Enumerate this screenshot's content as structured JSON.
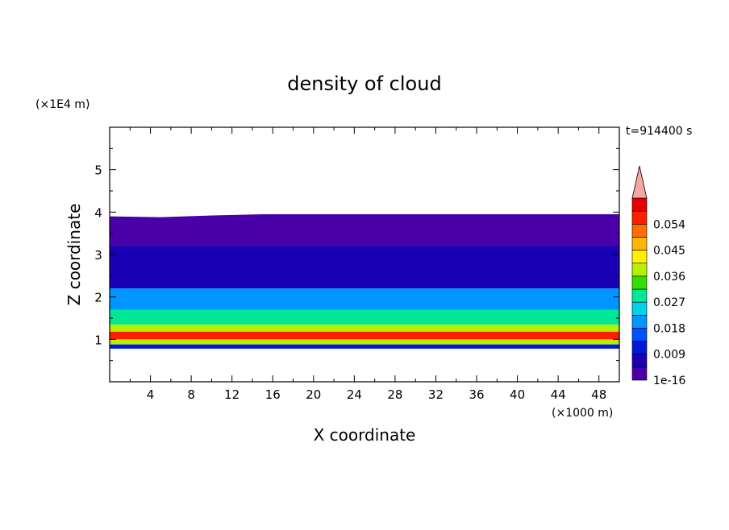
{
  "chart_data": {
    "type": "heatmap",
    "title": "density of cloud",
    "xlabel": "X coordinate",
    "ylabel": "Z coordinate",
    "x_unit": "(×1000 m)",
    "y_unit": "(×1E4 m)",
    "time_label": "t=914400 s",
    "xlim": [
      0,
      50
    ],
    "ylim": [
      0,
      6
    ],
    "x_ticks": [
      4,
      8,
      12,
      16,
      20,
      24,
      28,
      32,
      36,
      40,
      44,
      48
    ],
    "y_ticks": [
      1,
      2,
      3,
      4,
      5
    ],
    "colorbar": {
      "labels": [
        "1e-16",
        "0.009",
        "0.018",
        "0.027",
        "0.036",
        "0.045",
        "0.054"
      ],
      "levels": [
        0,
        0.0045,
        0.009,
        0.0135,
        0.018,
        0.0225,
        0.027,
        0.0315,
        0.036,
        0.0405,
        0.045,
        0.0495,
        0.054,
        0.0585
      ],
      "colors": [
        "#4a00a8",
        "#1a00b4",
        "#0018d8",
        "#0050ff",
        "#0096ff",
        "#00d2e8",
        "#00e896",
        "#30e000",
        "#b4f000",
        "#fff000",
        "#ffb400",
        "#ff6e00",
        "#ff1e00",
        "#e60000"
      ],
      "extend_color": "#f4a6a6"
    },
    "bands": [
      {
        "z_bottom": 3.2,
        "z_top": 3.95,
        "level": "1e-16"
      },
      {
        "z_bottom": 2.2,
        "z_top": 3.2,
        "level": "0.0045"
      },
      {
        "z_bottom": 1.7,
        "z_top": 2.2,
        "level": "0.018"
      },
      {
        "z_bottom": 1.35,
        "z_top": 1.7,
        "level": "0.027"
      },
      {
        "z_bottom": 1.18,
        "z_top": 1.35,
        "level": "0.036"
      },
      {
        "z_bottom": 1.0,
        "z_top": 1.18,
        "level": "0.054"
      },
      {
        "z_bottom": 0.88,
        "z_top": 1.0,
        "level": "0.036"
      },
      {
        "z_bottom": 0.78,
        "z_top": 0.88,
        "level": "0.009"
      }
    ],
    "cloud_top_z": [
      [
        0,
        3.9
      ],
      [
        5,
        3.88
      ],
      [
        10,
        3.92
      ],
      [
        15,
        3.95
      ],
      [
        20,
        4.0
      ],
      [
        25,
        4.08
      ],
      [
        30,
        4.1
      ],
      [
        35,
        4.12
      ],
      [
        40,
        4.1
      ],
      [
        45,
        4.05
      ],
      [
        50,
        4.0
      ]
    ],
    "cloud_base_z": 0.78
  }
}
